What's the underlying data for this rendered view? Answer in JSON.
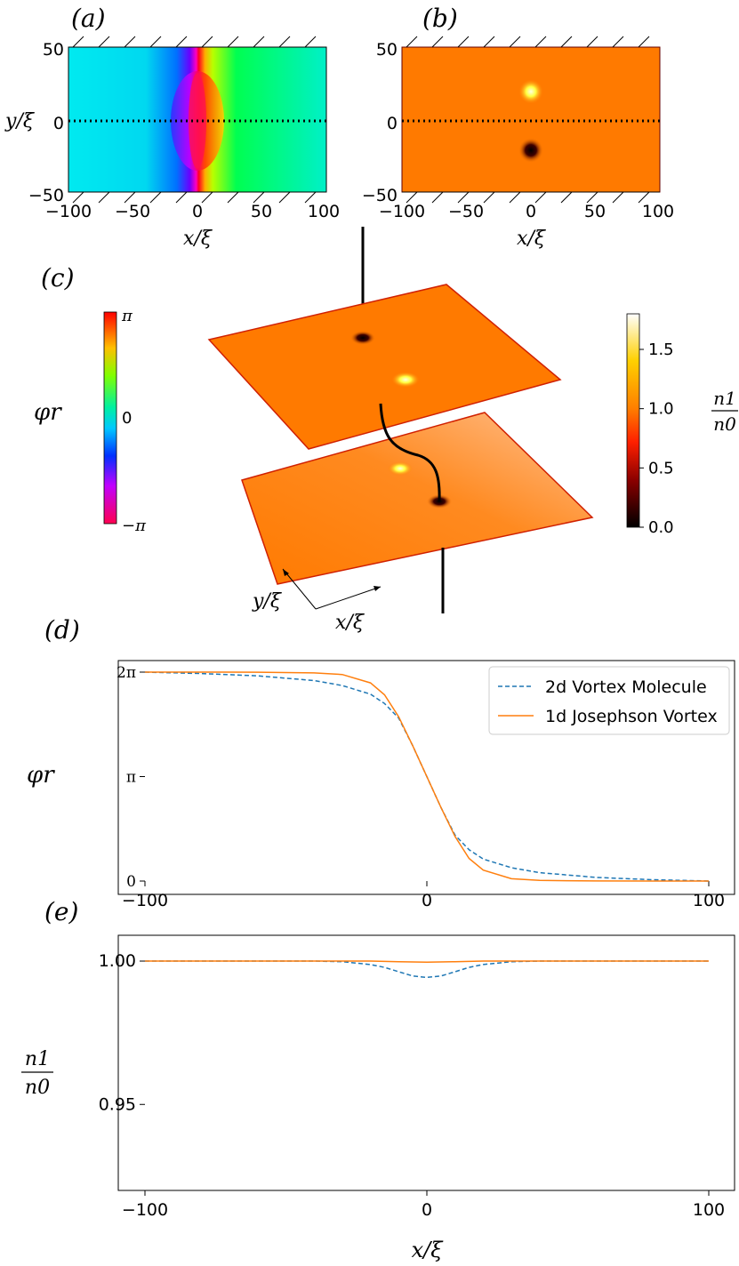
{
  "chart_data": [
    {
      "panel": "(a)",
      "type": "heatmap",
      "quantity": "relative phase",
      "xlabel": "x/ξ",
      "ylabel": "y/ξ",
      "xlim": [
        -100,
        100
      ],
      "ylim": [
        -50,
        50
      ],
      "xticks": [
        "−100",
        "−50",
        "0",
        "50",
        "100"
      ],
      "yticks": [
        "50",
        "0",
        "−50"
      ],
      "vortex_positions": [
        [
          0,
          20
        ],
        [
          0,
          -20
        ]
      ],
      "dotted_line_y": 0
    },
    {
      "panel": "(b)",
      "type": "heatmap",
      "quantity": "density n1/n0",
      "xlabel": "x/ξ",
      "ylabel": "",
      "xlim": [
        -100,
        100
      ],
      "ylim": [
        -50,
        50
      ],
      "xticks": [
        "−100",
        "−50",
        "0",
        "50",
        "100"
      ],
      "yticks": [
        "50",
        "0",
        "−50"
      ],
      "bright_spot": [
        0,
        20
      ],
      "dark_spot": [
        0,
        -20
      ],
      "dotted_line_y": 0
    },
    {
      "panel": "(c)",
      "type": "surface",
      "axis_labels": [
        "y/ξ",
        "x/ξ"
      ],
      "phase_colorbar": {
        "label": "φr",
        "ticks": [
          "π",
          "0",
          "−π"
        ]
      },
      "density_colorbar": {
        "label_num": "n1",
        "label_den": "n0",
        "range": [
          0,
          1.8
        ],
        "ticks": [
          "1.5",
          "1.0",
          "0.5",
          "0.0"
        ],
        "tick_values": [
          1.5,
          1.0,
          0.5,
          0.0
        ]
      }
    },
    {
      "panel": "(d)",
      "type": "line",
      "ylabel": "φr",
      "xlim": [
        -100,
        100
      ],
      "ylim": [
        0,
        6.283
      ],
      "xticks": [
        "−100",
        "0",
        "100"
      ],
      "yticks": [
        "0",
        "π",
        "2π"
      ],
      "legend_position": "top-right",
      "series": [
        {
          "name": "2d Vortex Molecule",
          "style": "dashed",
          "color": "#1f77b4",
          "x": [
            -100,
            -80,
            -60,
            -40,
            -30,
            -20,
            -15,
            -10,
            -5,
            0,
            5,
            10,
            15,
            20,
            30,
            40,
            60,
            80,
            100
          ],
          "y": [
            6.283,
            6.24,
            6.17,
            6.03,
            5.88,
            5.62,
            5.34,
            4.9,
            4.07,
            3.14,
            2.21,
            1.38,
            0.94,
            0.66,
            0.4,
            0.25,
            0.11,
            0.04,
            0.0
          ]
        },
        {
          "name": "1d Josephson Vortex",
          "style": "solid",
          "color": "#ff7f0e",
          "x": [
            -100,
            -80,
            -60,
            -40,
            -30,
            -20,
            -15,
            -10,
            -5,
            0,
            5,
            10,
            15,
            20,
            30,
            40,
            60,
            80,
            100
          ],
          "y": [
            6.283,
            6.282,
            6.28,
            6.26,
            6.21,
            5.96,
            5.6,
            4.94,
            4.07,
            3.14,
            2.21,
            1.34,
            0.68,
            0.33,
            0.07,
            0.02,
            0.003,
            0.001,
            0.0
          ]
        }
      ]
    },
    {
      "panel": "(e)",
      "type": "line",
      "ylabel_num": "n1",
      "ylabel_den": "n0",
      "xlabel": "x/ξ",
      "xlim": [
        -100,
        100
      ],
      "ylim": [
        0.92,
        1.009
      ],
      "xticks": [
        "−100",
        "0",
        "100"
      ],
      "yticks": [
        "1.00",
        "0.95"
      ],
      "ytick_values": [
        1.0,
        0.95
      ],
      "series": [
        {
          "name": "2d Vortex Molecule",
          "style": "dashed",
          "color": "#1f77b4",
          "x": [
            -100,
            -40,
            -30,
            -20,
            -15,
            -10,
            -5,
            0,
            5,
            10,
            15,
            20,
            30,
            40,
            100
          ],
          "y": [
            1.0,
            1.0,
            0.9998,
            0.9988,
            0.9978,
            0.9963,
            0.9948,
            0.9943,
            0.9948,
            0.9963,
            0.9978,
            0.9988,
            0.9998,
            1.0,
            1.0
          ]
        },
        {
          "name": "1d Josephson Vortex",
          "style": "solid",
          "color": "#ff7f0e",
          "x": [
            -100,
            -20,
            -10,
            0,
            10,
            20,
            100
          ],
          "y": [
            1.0,
            1.0,
            0.9998,
            0.9996,
            0.9998,
            1.0,
            1.0
          ]
        }
      ]
    }
  ],
  "panel_labels": {
    "a": "(a)",
    "b": "(b)",
    "c": "(c)",
    "d": "(d)",
    "e": "(e)"
  },
  "colors": {
    "density_background": "#ff7a00",
    "dashed_series": "#1f77b4",
    "solid_series": "#ff7f0e"
  }
}
